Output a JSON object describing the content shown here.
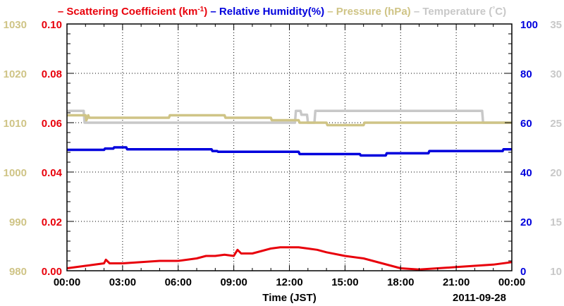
{
  "chart_data": {
    "type": "line",
    "x_unit": "hours",
    "xlim": [
      0,
      24
    ],
    "x_ticks": [
      {
        "value": 0,
        "label": "00:00"
      },
      {
        "value": 3,
        "label": "03:00"
      },
      {
        "value": 6,
        "label": "06:00"
      },
      {
        "value": 9,
        "label": "09:00"
      },
      {
        "value": 12,
        "label": "12:00"
      },
      {
        "value": 15,
        "label": "15:00"
      },
      {
        "value": 18,
        "label": "18:00"
      },
      {
        "value": 21,
        "label": "21:00"
      },
      {
        "value": 24,
        "label": "00:00"
      }
    ],
    "xlabel": "Time (JST)",
    "date_label": "2011-09-28",
    "grid": true,
    "legend": {
      "placement": "top",
      "entries": [
        {
          "series": "scattering",
          "marker": "–",
          "text": "Scattering Coefficient (km",
          "sup": "-1",
          "suffix": ")",
          "color": "#e8000b"
        },
        {
          "series": "humidity",
          "marker": "–",
          "text": "Relative Humidity(%)",
          "color": "#0000dd"
        },
        {
          "series": "pressure",
          "marker": "–",
          "text": "Pressure (hPa)",
          "color": "#cfc486"
        },
        {
          "series": "temperature",
          "marker": "–",
          "text": "Temperature (",
          "deg": "°",
          "suffix": "C)",
          "color": "#c8c8c8"
        }
      ]
    },
    "axes": {
      "pressure": {
        "range": [
          980,
          1030
        ],
        "ticks": [
          "980",
          "990",
          "1000",
          "1010",
          "1020",
          "1030"
        ],
        "color": "#cfc486"
      },
      "scattering": {
        "range": [
          0.0,
          0.1
        ],
        "ticks": [
          "0.00",
          "0.02",
          "0.04",
          "0.06",
          "0.08",
          "0.10"
        ],
        "color": "#e8000b"
      },
      "humidity": {
        "range": [
          0,
          100
        ],
        "ticks": [
          "0",
          "20",
          "40",
          "60",
          "80",
          "100"
        ],
        "color": "#0000dd"
      },
      "temperature": {
        "range": [
          10,
          35
        ],
        "ticks": [
          "10",
          "15",
          "20",
          "25",
          "30",
          "35"
        ],
        "color": "#c8c8c8"
      }
    },
    "series": [
      {
        "name": "Scattering Coefficient (km-1)",
        "key": "scattering",
        "axis": "scattering",
        "color": "#e8000b",
        "x": [
          0,
          0.5,
          1,
          1.5,
          2,
          2.1,
          2.3,
          3,
          4,
          5,
          6,
          7,
          7.5,
          8,
          8.5,
          9,
          9.2,
          9.4,
          10,
          10.5,
          11,
          11.5,
          12,
          12.5,
          13,
          13.5,
          14,
          15,
          16,
          17,
          18,
          19,
          20,
          21,
          22,
          23,
          24
        ],
        "y": [
          0.001,
          0.0015,
          0.002,
          0.0025,
          0.003,
          0.0045,
          0.003,
          0.003,
          0.0035,
          0.004,
          0.004,
          0.005,
          0.006,
          0.006,
          0.0065,
          0.006,
          0.0085,
          0.007,
          0.007,
          0.008,
          0.009,
          0.0095,
          0.0095,
          0.0095,
          0.009,
          0.0085,
          0.0075,
          0.006,
          0.005,
          0.003,
          0.001,
          0.0005,
          0.001,
          0.0015,
          0.002,
          0.0025,
          0.0035
        ]
      },
      {
        "name": "Relative Humidity(%)",
        "key": "humidity",
        "axis": "humidity",
        "color": "#0000dd",
        "x": [
          0,
          2,
          2.05,
          2.5,
          2.55,
          3.2,
          3.25,
          7.8,
          7.85,
          8.1,
          8.15,
          12.5,
          12.55,
          15.8,
          15.85,
          17.2,
          17.25,
          19.5,
          19.55,
          23.5,
          23.55,
          24
        ],
        "y": [
          49,
          49,
          49.5,
          49.5,
          50,
          50,
          49.2,
          49.2,
          48.5,
          48.5,
          48.2,
          48.2,
          47.3,
          47.3,
          46.7,
          46.7,
          47.6,
          47.6,
          48.5,
          48.5,
          49.2,
          49.2
        ]
      },
      {
        "name": "Pressure (hPa)",
        "key": "pressure",
        "axis": "pressure",
        "color": "#cfc486",
        "x": [
          0,
          1.0,
          1.05,
          1.15,
          1.2,
          5.5,
          5.55,
          8.5,
          8.55,
          11.0,
          11.05,
          12.5,
          12.55,
          14.0,
          14.05,
          16.0,
          16.05,
          24
        ],
        "y": [
          1011.5,
          1011.5,
          1010.5,
          1011.5,
          1011,
          1011,
          1011.5,
          1011.5,
          1011,
          1011,
          1010.5,
          1010.5,
          1010,
          1010,
          1009.5,
          1009.5,
          1010,
          1010
        ]
      },
      {
        "name": "Temperature (C)",
        "key": "temperature",
        "axis": "temperature",
        "color": "#c8c8c8",
        "x": [
          0,
          0.9,
          0.95,
          12.3,
          12.35,
          12.6,
          12.65,
          12.95,
          13.0,
          13.35,
          13.4,
          22.4,
          22.45,
          22.55,
          22.6,
          24
        ],
        "y": [
          26.2,
          26.2,
          25,
          25,
          26.2,
          26.2,
          25.8,
          25.8,
          25,
          25,
          26.2,
          26.2,
          25,
          25,
          25,
          25
        ]
      }
    ]
  }
}
